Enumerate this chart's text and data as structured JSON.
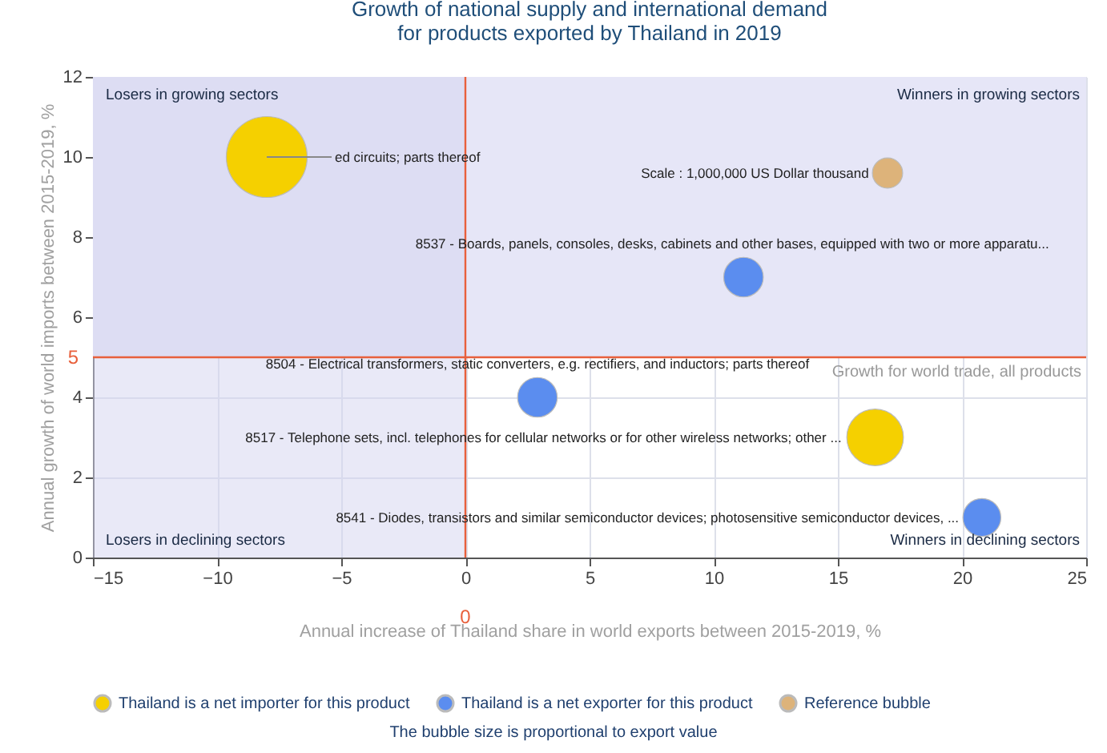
{
  "chart_data": {
    "type": "bubble",
    "title": "Growth of national supply and international demand\nfor products exported by Thailand in 2019",
    "xlabel": "Annual increase of Thailand share in world exports between 2015-2019, %",
    "ylabel": "Annual growth of world imports between 2015-2019, %",
    "xlim": [
      -15,
      25
    ],
    "xticks": [
      -15,
      -10,
      -5,
      0,
      5,
      10,
      15,
      20,
      25
    ],
    "ylim": [
      0,
      12
    ],
    "yticks": [
      0,
      2,
      4,
      6,
      8,
      10,
      12
    ],
    "grid": true,
    "legend": "bottom",
    "series": [
      {
        "name": "Thailand is a net importer for this product",
        "color": "#f5d000",
        "x": [
          -8,
          16.5
        ],
        "values": [
          10,
          3
        ],
        "sizes": [
          1,
          0.49
        ]
      },
      {
        "name": "Thailand is a net exporter for this product",
        "color": "#5b8def",
        "x": [
          11.2,
          2.9,
          20.8
        ],
        "values": [
          7,
          4,
          1
        ],
        "sizes": [
          0.24,
          0.24,
          0.22
        ]
      },
      {
        "name": "Reference bubble",
        "color": "#ddb37a",
        "x": [
          17
        ],
        "values": [
          9.6
        ],
        "sizes": [
          0.14
        ]
      }
    ],
    "ref_lines": [
      {
        "axis": "y",
        "value": 5,
        "label": "5",
        "color": "#e8603c"
      },
      {
        "axis": "x",
        "value": 0,
        "label": "0",
        "color": "#e8603c"
      }
    ],
    "bands": [
      {
        "axis": "y",
        "from": 5,
        "to": 12,
        "label": null,
        "color": "#e6e6f7"
      },
      {
        "axis": "x",
        "from": -15,
        "to": 0,
        "label": null,
        "color": "#d4d4f0"
      }
    ],
    "annotations": [
      "Losers in growing sectors",
      "Winners in growing sectors",
      "Losers in declining sectors",
      "Winners in declining sectors",
      {
        "text": "Growth for world trade, all products",
        "x": 25,
        "y": 5
      },
      {
        "text": "ed circuits; parts thereof",
        "x": -8,
        "y": 10
      },
      {
        "text": "Scale : 1,000,000 US Dollar thousand",
        "x": 17,
        "y": 9.6
      },
      {
        "text": "8537 - Boards, panels, consoles, desks, cabinets and other bases, equipped with two or more apparatu...",
        "x": 11.2,
        "y": 7
      },
      {
        "text": "8504 - Electrical transformers, static converters, e.g. rectifiers, and inductors; parts thereof",
        "x": 2.9,
        "y": 4
      },
      {
        "text": "8517 - Telephone sets, incl. telephones for cellular networks or for other wireless networks; other ...",
        "x": 16.5,
        "y": 3
      },
      {
        "text": "8541 - Diodes, transistors and similar semiconductor devices; photosensitive semiconductor devices, ...",
        "x": 20.8,
        "y": 1
      },
      "The bubble size is proportional to export value"
    ]
  }
}
